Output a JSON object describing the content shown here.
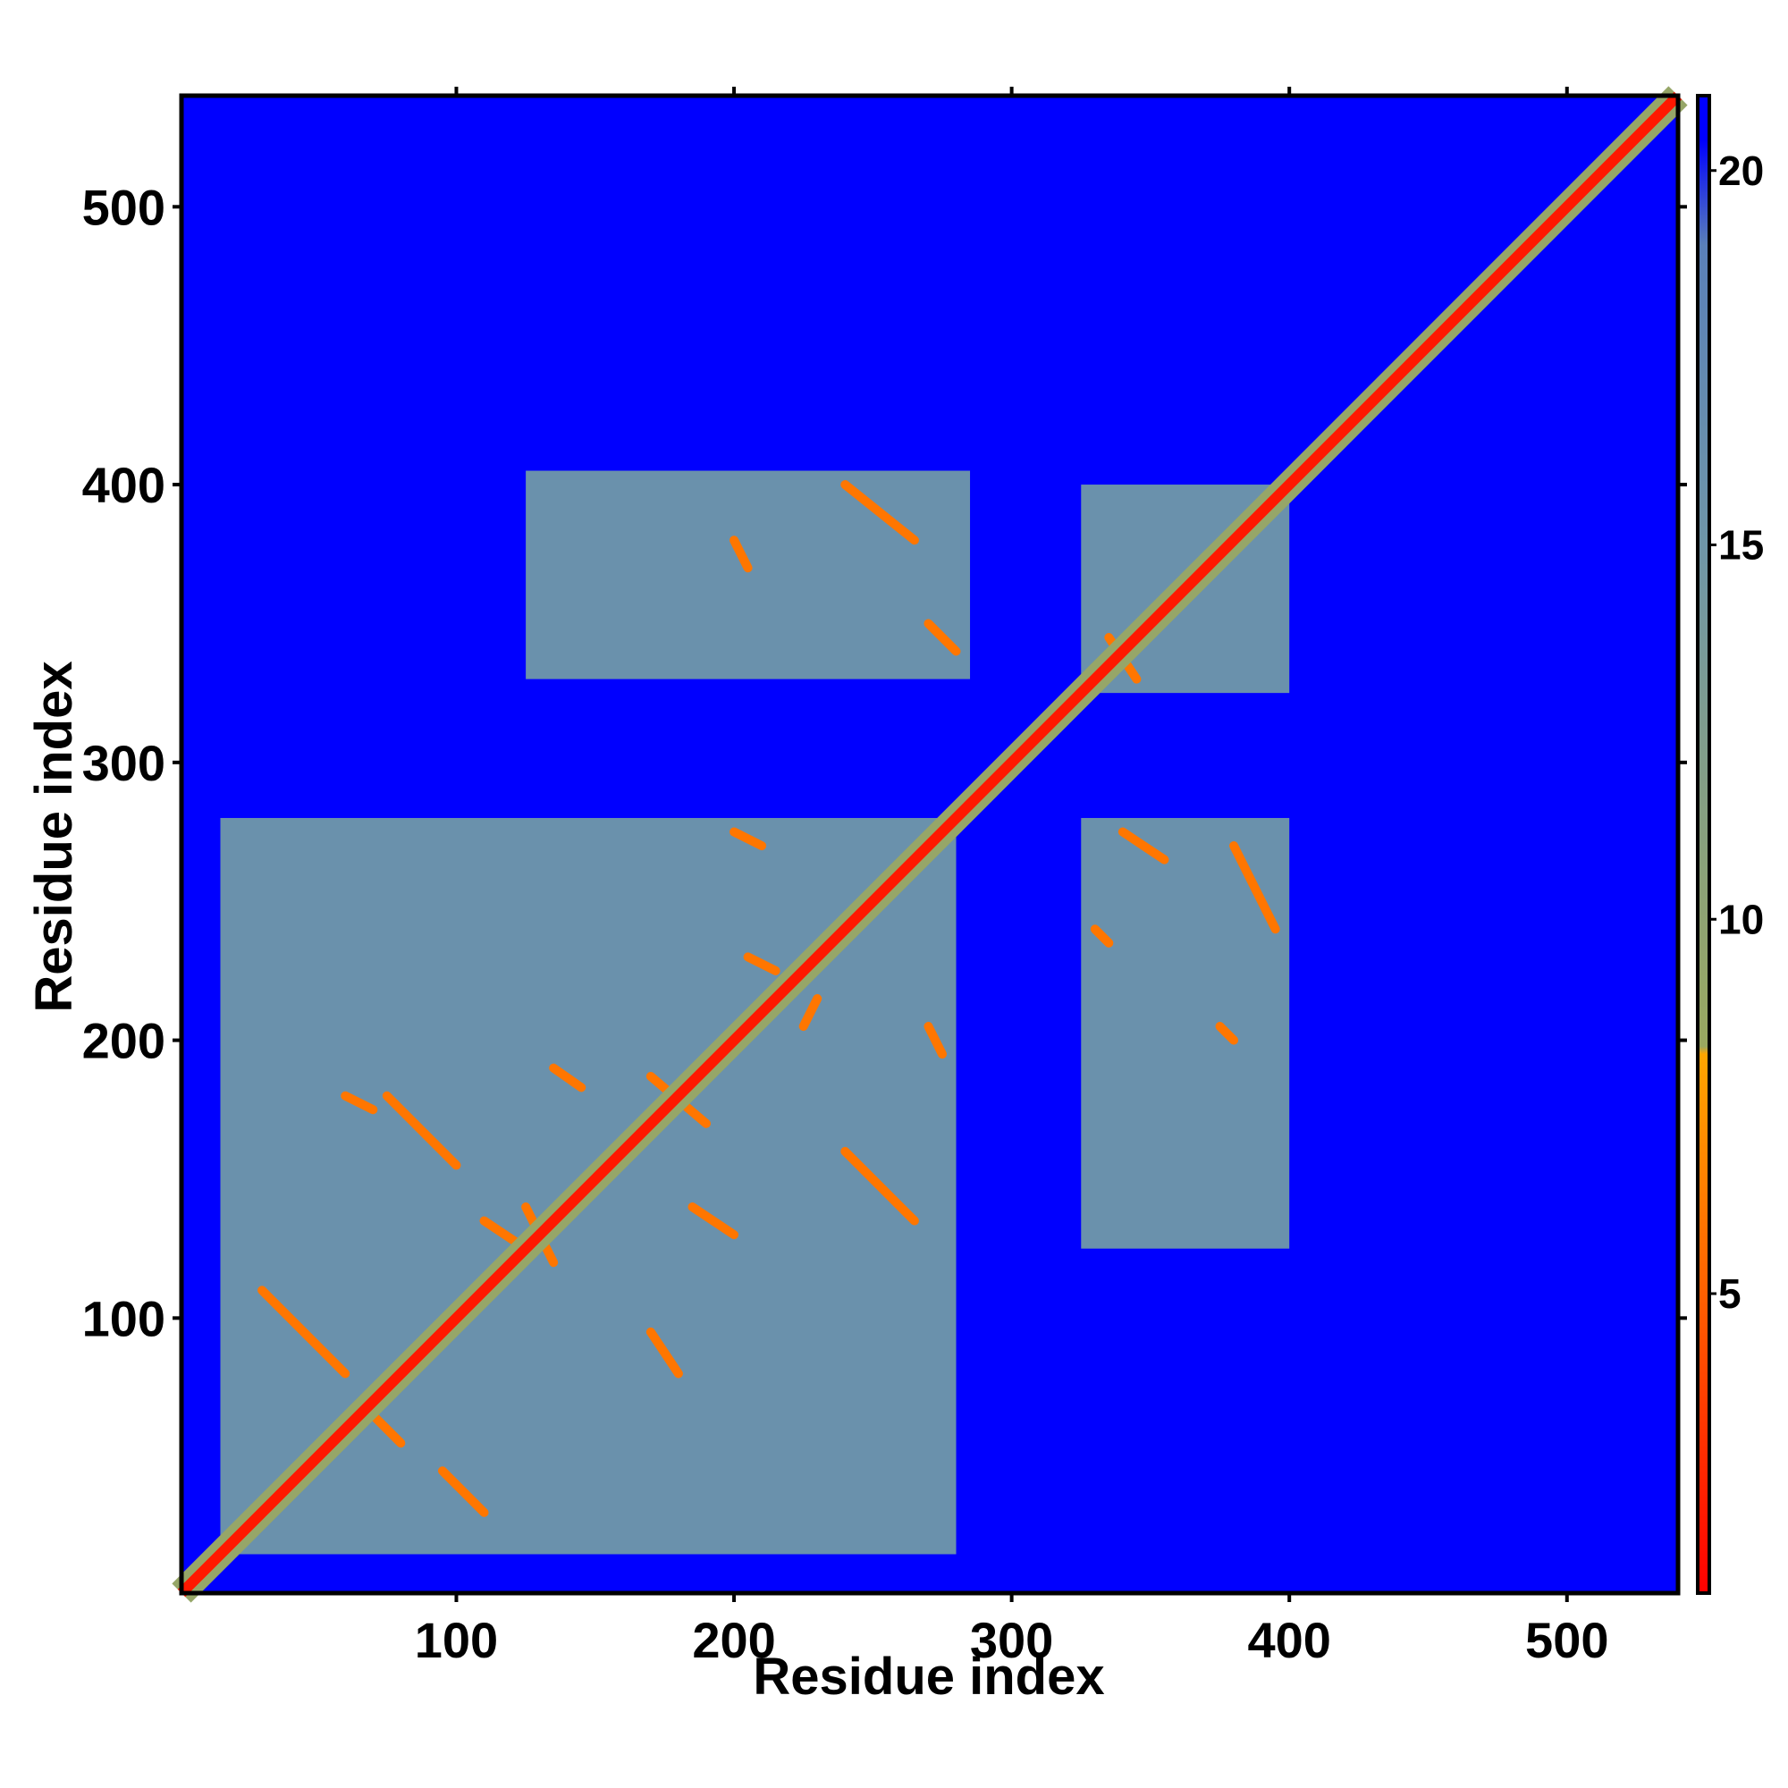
{
  "chart_data": {
    "type": "heatmap",
    "title": "",
    "xlabel": "Residue index",
    "ylabel": "Residue index",
    "xlim": [
      1,
      540
    ],
    "ylim": [
      1,
      540
    ],
    "x_ticks": [
      100,
      200,
      300,
      400,
      500
    ],
    "y_ticks": [
      100,
      200,
      300,
      400,
      500
    ],
    "x_tick_labels": [
      "100",
      "200",
      "300",
      "400",
      "500"
    ],
    "y_tick_labels": [
      "100",
      "200",
      "300",
      "400",
      "500"
    ],
    "background_value": 21,
    "colorbar": {
      "range": [
        1,
        21
      ],
      "ticks": [
        5,
        10,
        15,
        20
      ],
      "tick_labels": [
        "5",
        "10",
        "15",
        "20"
      ],
      "stops": [
        {
          "value": 1,
          "color": "#ff0000"
        },
        {
          "value": 5,
          "color": "#ff6000"
        },
        {
          "value": 8.2,
          "color": "#ffa500"
        },
        {
          "value": 8.3,
          "color": "#9aa860"
        },
        {
          "value": 15,
          "color": "#6f96a8"
        },
        {
          "value": 19,
          "color": "#5a80b8"
        },
        {
          "value": 20.4,
          "color": "#0000ff"
        },
        {
          "value": 21,
          "color": "#0000ff"
        }
      ]
    },
    "diagonal": {
      "from": 1,
      "to": 540,
      "value": 2
    },
    "contact_blocks": [
      {
        "x": [
          15,
          280
        ],
        "y": [
          15,
          280
        ],
        "value": 16
      },
      {
        "x": [
          125,
          285
        ],
        "y": [
          330,
          405
        ],
        "value": 16
      },
      {
        "x": [
          325,
          400
        ],
        "y": [
          125,
          280
        ],
        "value": 16
      },
      {
        "x": [
          325,
          400
        ],
        "y": [
          325,
          400
        ],
        "value": 16
      }
    ],
    "contact_lines": [
      {
        "from": [
          75,
          180
        ],
        "to": [
          100,
          155
        ],
        "value": 6
      },
      {
        "from": [
          135,
          190
        ],
        "to": [
          145,
          183
        ],
        "value": 6
      },
      {
        "from": [
          170,
          187
        ],
        "to": [
          190,
          170
        ],
        "value": 6
      },
      {
        "from": [
          205,
          230
        ],
        "to": [
          215,
          225
        ],
        "value": 6
      },
      {
        "from": [
          225,
          205
        ],
        "to": [
          230,
          215
        ],
        "value": 6
      },
      {
        "from": [
          200,
          275
        ],
        "to": [
          210,
          270
        ],
        "value": 6
      },
      {
        "from": [
          185,
          140
        ],
        "to": [
          200,
          130
        ],
        "value": 6
      },
      {
        "from": [
          170,
          95
        ],
        "to": [
          180,
          80
        ],
        "value": 6
      },
      {
        "from": [
          110,
          135
        ],
        "to": [
          125,
          125
        ],
        "value": 6
      },
      {
        "from": [
          125,
          140
        ],
        "to": [
          135,
          120
        ],
        "value": 6
      },
      {
        "from": [
          240,
          160
        ],
        "to": [
          265,
          135
        ],
        "value": 6
      },
      {
        "from": [
          270,
          205
        ],
        "to": [
          275,
          195
        ],
        "value": 6
      },
      {
        "from": [
          270,
          350
        ],
        "to": [
          280,
          340
        ],
        "value": 6
      },
      {
        "from": [
          240,
          400
        ],
        "to": [
          265,
          380
        ],
        "value": 6
      },
      {
        "from": [
          200,
          380
        ],
        "to": [
          205,
          370
        ],
        "value": 6
      },
      {
        "from": [
          335,
          345
        ],
        "to": [
          345,
          330
        ],
        "value": 6
      },
      {
        "from": [
          340,
          275
        ],
        "to": [
          355,
          265
        ],
        "value": 6
      },
      {
        "from": [
          380,
          270
        ],
        "to": [
          395,
          240
        ],
        "value": 6
      },
      {
        "from": [
          330,
          240
        ],
        "to": [
          335,
          235
        ],
        "value": 6
      },
      {
        "from": [
          30,
          110
        ],
        "to": [
          60,
          80
        ],
        "value": 6
      },
      {
        "from": [
          70,
          65
        ],
        "to": [
          80,
          55
        ],
        "value": 6
      },
      {
        "from": [
          95,
          45
        ],
        "to": [
          110,
          30
        ],
        "value": 6
      },
      {
        "from": [
          60,
          180
        ],
        "to": [
          70,
          175
        ],
        "value": 6
      },
      {
        "from": [
          375,
          205
        ],
        "to": [
          380,
          200
        ],
        "value": 6
      }
    ]
  }
}
